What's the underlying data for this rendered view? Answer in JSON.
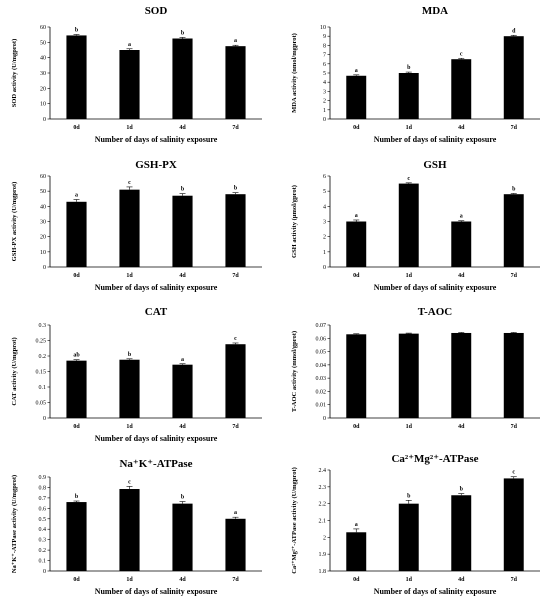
{
  "chart_data": [
    {
      "type": "bar",
      "title": "SOD",
      "ylabel": "SOD activity (U/mgprot)",
      "xlabel": "Number of days of salinity exposure",
      "categories": [
        "0d",
        "1d",
        "4d",
        "7d"
      ],
      "values": [
        54.5,
        45,
        52.5,
        47.5
      ],
      "errors": [
        0.6,
        0.8,
        0.7,
        0.6
      ],
      "letters": [
        "b",
        "a",
        "b",
        "a"
      ],
      "ylim": [
        0,
        60
      ],
      "yticks": [
        "0",
        "10",
        "20",
        "30",
        "40",
        "50",
        "60"
      ]
    },
    {
      "type": "bar",
      "title": "MDA",
      "ylabel": "MDA activity (nmol/mgprot)",
      "xlabel": "Number of days of salinity exposure",
      "categories": [
        "0d",
        "1d",
        "4d",
        "7d"
      ],
      "values": [
        4.7,
        5.0,
        6.5,
        9.0
      ],
      "errors": [
        0.1,
        0.1,
        0.1,
        0.1
      ],
      "letters": [
        "a",
        "b",
        "c",
        "d"
      ],
      "ylim": [
        0,
        10
      ],
      "yticks": [
        "0",
        "1",
        "2",
        "3",
        "4",
        "5",
        "6",
        "7",
        "8",
        "9",
        "10"
      ]
    },
    {
      "type": "bar",
      "title": "GSH-PX",
      "ylabel": "GSH-PX activity (U/mgprot)",
      "xlabel": "Number of days of salinity exposure",
      "categories": [
        "0d",
        "1d",
        "4d",
        "7d"
      ],
      "values": [
        43,
        51,
        47,
        48
      ],
      "errors": [
        1.5,
        1.8,
        1.4,
        1.0
      ],
      "letters": [
        "a",
        "c",
        "b",
        "b"
      ],
      "ylim": [
        0,
        60
      ],
      "yticks": [
        "0",
        "10",
        "20",
        "30",
        "40",
        "50",
        "60"
      ]
    },
    {
      "type": "bar",
      "title": "GSH",
      "ylabel": "GSH activity (µmol/gprot)",
      "xlabel": "Number of days of salinity exposure",
      "categories": [
        "0d",
        "1d",
        "4d",
        "7d"
      ],
      "values": [
        3.0,
        5.5,
        3.0,
        4.8
      ],
      "errors": [
        0.1,
        0.05,
        0.05,
        0.05
      ],
      "letters": [
        "a",
        "c",
        "a",
        "b"
      ],
      "ylim": [
        0,
        6
      ],
      "yticks": [
        "0",
        "1",
        "2",
        "3",
        "4",
        "5",
        "6"
      ]
    },
    {
      "type": "bar",
      "title": "CAT",
      "ylabel": "CAT activity (U/mgprot)",
      "xlabel": "Number of days of salinity exposure",
      "categories": [
        "0d",
        "1d",
        "4d",
        "7d"
      ],
      "values": [
        0.185,
        0.188,
        0.172,
        0.238
      ],
      "errors": [
        0.003,
        0.003,
        0.003,
        0.004
      ],
      "letters": [
        "ab",
        "b",
        "a",
        "c"
      ],
      "ylim": [
        0,
        0.3
      ],
      "yticks": [
        "0",
        "0.05",
        "0.1",
        "0.15",
        "0.2",
        "0.25",
        "0.3"
      ]
    },
    {
      "type": "bar",
      "title": "T-AOC",
      "ylabel": "T-AOC activity (mmol/gprot)",
      "xlabel": "",
      "categories": [
        "0d",
        "1d",
        "4d",
        "7d"
      ],
      "values": [
        0.063,
        0.0635,
        0.064,
        0.064
      ],
      "errors": [
        0.0004,
        0.0004,
        0.0004,
        0.0004
      ],
      "letters": [
        "",
        "",
        "",
        ""
      ],
      "ylim": [
        0,
        0.07
      ],
      "yticks": [
        "0",
        "0.01",
        "0.02",
        "0.03",
        "0.04",
        "0.05",
        "0.06",
        "0.07"
      ]
    },
    {
      "type": "bar",
      "title": "Na⁺K⁺-ATPase",
      "ylabel": "Na⁺K⁺-ATPase activity (U/mgprot)",
      "xlabel": "Number of days of salinity exposure",
      "categories": [
        "0d",
        "1d",
        "4d",
        "7d"
      ],
      "values": [
        0.66,
        0.785,
        0.645,
        0.5
      ],
      "errors": [
        0.01,
        0.025,
        0.02,
        0.015
      ],
      "letters": [
        "b",
        "c",
        "b",
        "a"
      ],
      "ylim": [
        0,
        0.9
      ],
      "yticks": [
        "0",
        "0.1",
        "0.2",
        "0.3",
        "0.4",
        "0.5",
        "0.6",
        "0.7",
        "0.8",
        "0.9"
      ]
    },
    {
      "type": "bar",
      "title": "Ca²⁺Mg²⁺-ATPase",
      "ylabel": "Ca²⁺Mg²⁺-ATPase activity (U/mgprot)",
      "xlabel": "Number of days of salinity exposure",
      "categories": [
        "0d",
        "1d",
        "4d",
        "7d"
      ],
      "values": [
        2.03,
        2.2,
        2.25,
        2.35
      ],
      "errors": [
        0.02,
        0.02,
        0.01,
        0.01
      ],
      "letters": [
        "a",
        "b",
        "b",
        "c"
      ],
      "ylim": [
        1.8,
        2.4
      ],
      "yticks": [
        "1.8",
        "1.9",
        "2",
        "2.1",
        "2.2",
        "2.3",
        "2.4"
      ]
    }
  ]
}
